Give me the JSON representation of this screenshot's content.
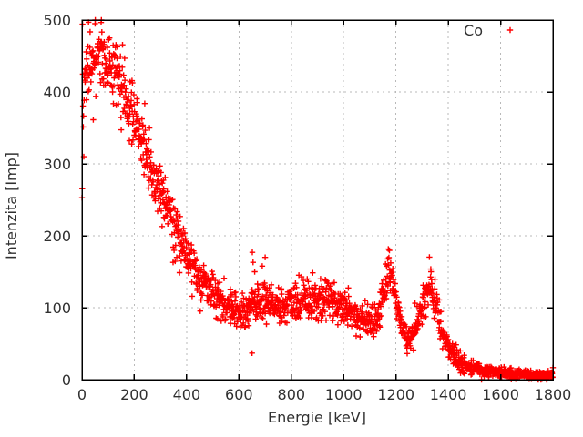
{
  "chart_data": {
    "type": "scatter",
    "title": "",
    "xlabel": "Energie [keV]",
    "ylabel": "Intenzita [Imp]",
    "xlim": [
      0,
      1800
    ],
    "ylim": [
      0,
      500
    ],
    "xticks": [
      0,
      200,
      400,
      600,
      800,
      1000,
      1200,
      1400,
      1600,
      1800
    ],
    "yticks": [
      0,
      100,
      200,
      300,
      400,
      500
    ],
    "grid": true,
    "legend": {
      "position": "top-right",
      "entries": [
        {
          "label": "Co",
          "marker": "plus",
          "color": "#ff0000"
        }
      ]
    },
    "series": [
      {
        "name": "Co",
        "marker": "plus",
        "color": "#ff0000",
        "channel_step_kev": 1,
        "seed": 7,
        "noise_sd_factor": 1.25,
        "low_energy_scatter": {
          "max_kev": 8,
          "min": 250,
          "max": 500
        },
        "envelope": [
          [
            8,
            420
          ],
          [
            25,
            435
          ],
          [
            50,
            450
          ],
          [
            75,
            455
          ],
          [
            100,
            440
          ],
          [
            125,
            420
          ],
          [
            150,
            405
          ],
          [
            175,
            385
          ],
          [
            200,
            365
          ],
          [
            225,
            332
          ],
          [
            250,
            305
          ],
          [
            275,
            285
          ],
          [
            300,
            265
          ],
          [
            325,
            240
          ],
          [
            350,
            215
          ],
          [
            375,
            195
          ],
          [
            400,
            178
          ],
          [
            425,
            160
          ],
          [
            450,
            145
          ],
          [
            475,
            132
          ],
          [
            500,
            120
          ],
          [
            525,
            112
          ],
          [
            550,
            105
          ],
          [
            575,
            100
          ],
          [
            600,
            97
          ],
          [
            625,
            98
          ],
          [
            650,
            103
          ],
          [
            675,
            109
          ],
          [
            700,
            113
          ],
          [
            725,
            108
          ],
          [
            750,
            104
          ],
          [
            775,
            103
          ],
          [
            800,
            105
          ],
          [
            825,
            108
          ],
          [
            850,
            110
          ],
          [
            875,
            112
          ],
          [
            900,
            113
          ],
          [
            925,
            114
          ],
          [
            950,
            114
          ],
          [
            975,
            109
          ],
          [
            1000,
            103
          ],
          [
            1025,
            95
          ],
          [
            1050,
            87
          ],
          [
            1075,
            80
          ],
          [
            1100,
            75
          ],
          [
            1120,
            78
          ],
          [
            1140,
            98
          ],
          [
            1155,
            124
          ],
          [
            1165,
            146
          ],
          [
            1173,
            157
          ],
          [
            1182,
            144
          ],
          [
            1195,
            117
          ],
          [
            1210,
            92
          ],
          [
            1230,
            71
          ],
          [
            1250,
            60
          ],
          [
            1270,
            71
          ],
          [
            1285,
            82
          ],
          [
            1300,
            99
          ],
          [
            1315,
            117
          ],
          [
            1325,
            126
          ],
          [
            1332,
            129
          ],
          [
            1340,
            123
          ],
          [
            1355,
            103
          ],
          [
            1375,
            72
          ],
          [
            1400,
            46
          ],
          [
            1425,
            32
          ],
          [
            1450,
            24
          ],
          [
            1475,
            18
          ],
          [
            1500,
            14
          ],
          [
            1550,
            11
          ],
          [
            1600,
            9
          ],
          [
            1650,
            8
          ],
          [
            1700,
            7
          ],
          [
            1750,
            6
          ],
          [
            1800,
            6
          ]
        ],
        "outliers": [
          [
            650,
            37
          ],
          [
            651,
            177
          ],
          [
            654,
            163
          ],
          [
            660,
            150
          ],
          [
            700,
            170
          ]
        ],
        "peaks_kev": [
          1173,
          1332
        ]
      }
    ],
    "styles": {
      "marker_color": "#ff0000",
      "grid_color": "#b9b9b9",
      "frame_color": "#000000",
      "text_color": "#303030",
      "background": "#ffffff"
    }
  }
}
